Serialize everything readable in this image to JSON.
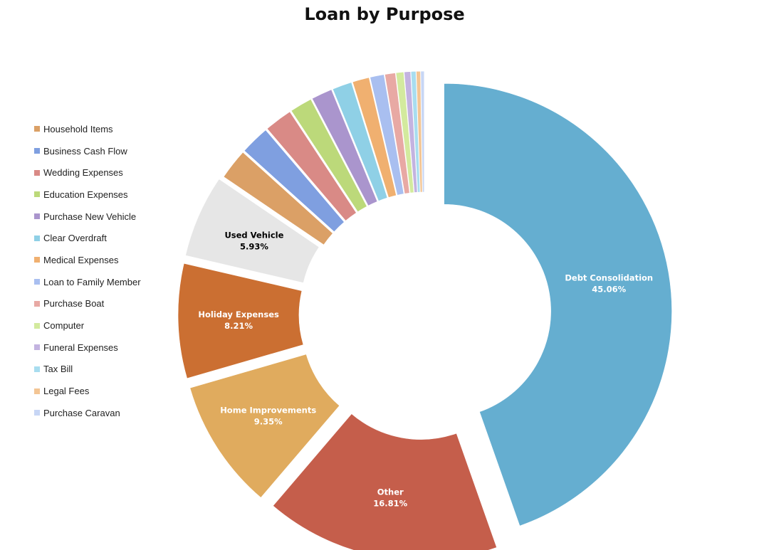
{
  "chart_data": {
    "type": "pie",
    "title": "Loan by Purpose",
    "legend_position": "left",
    "slices": [
      {
        "name": "Debt Consolidation",
        "value": 45.06,
        "label": "45.06%",
        "color": "#65aed0",
        "label_color": "#ffffff"
      },
      {
        "name": "Other",
        "value": 16.81,
        "label": "16.81%",
        "color": "#c55e4b",
        "label_color": "#ffffff"
      },
      {
        "name": "Home Improvements",
        "value": 9.35,
        "label": "9.35%",
        "color": "#e0ab5e",
        "label_color": "#ffffff"
      },
      {
        "name": "Holiday Expenses",
        "value": 8.21,
        "label": "8.21%",
        "color": "#cb6f32",
        "label_color": "#ffffff"
      },
      {
        "name": "Used Vehicle",
        "value": 5.93,
        "label": "5.93%",
        "color": "#e6e6e6",
        "label_color": "#000000"
      },
      {
        "name": "Household Items",
        "value": 2.2,
        "color": "#dba066"
      },
      {
        "name": "Business Cash Flow",
        "value": 2.1,
        "color": "#7f9fe0"
      },
      {
        "name": "Wedding Expenses",
        "value": 2.0,
        "color": "#d98a86"
      },
      {
        "name": "Education Expenses",
        "value": 1.6,
        "color": "#bcd97a"
      },
      {
        "name": "Purchase New Vehicle",
        "value": 1.5,
        "color": "#aa95cd"
      },
      {
        "name": "Clear Overdraft",
        "value": 1.4,
        "color": "#8fd0e6"
      },
      {
        "name": "Medical Expenses",
        "value": 1.2,
        "color": "#f0b070"
      },
      {
        "name": "Loan to Family Member",
        "value": 1.0,
        "color": "#a9bff0"
      },
      {
        "name": "Purchase Boat",
        "value": 0.75,
        "color": "#e8a9a4"
      },
      {
        "name": "Computer",
        "value": 0.55,
        "color": "#d3ea9e"
      },
      {
        "name": "Funeral Expenses",
        "value": 0.45,
        "color": "#c3b3e0"
      },
      {
        "name": "Tax Bill",
        "value": 0.35,
        "color": "#a8ddef"
      },
      {
        "name": "Legal Fees",
        "value": 0.3,
        "color": "#f3c594"
      },
      {
        "name": "Purchase Caravan",
        "value": 0.25,
        "color": "#c7d6f5"
      }
    ],
    "legend": [
      "Household Items",
      "Business Cash Flow",
      "Wedding Expenses",
      "Education Expenses",
      "Purchase New Vehicle",
      "Clear Overdraft",
      "Medical Expenses",
      "Loan to Family Member",
      "Purchase Boat",
      "Computer",
      "Funeral Expenses",
      "Tax Bill",
      "Legal Fees",
      "Purchase Caravan"
    ]
  }
}
